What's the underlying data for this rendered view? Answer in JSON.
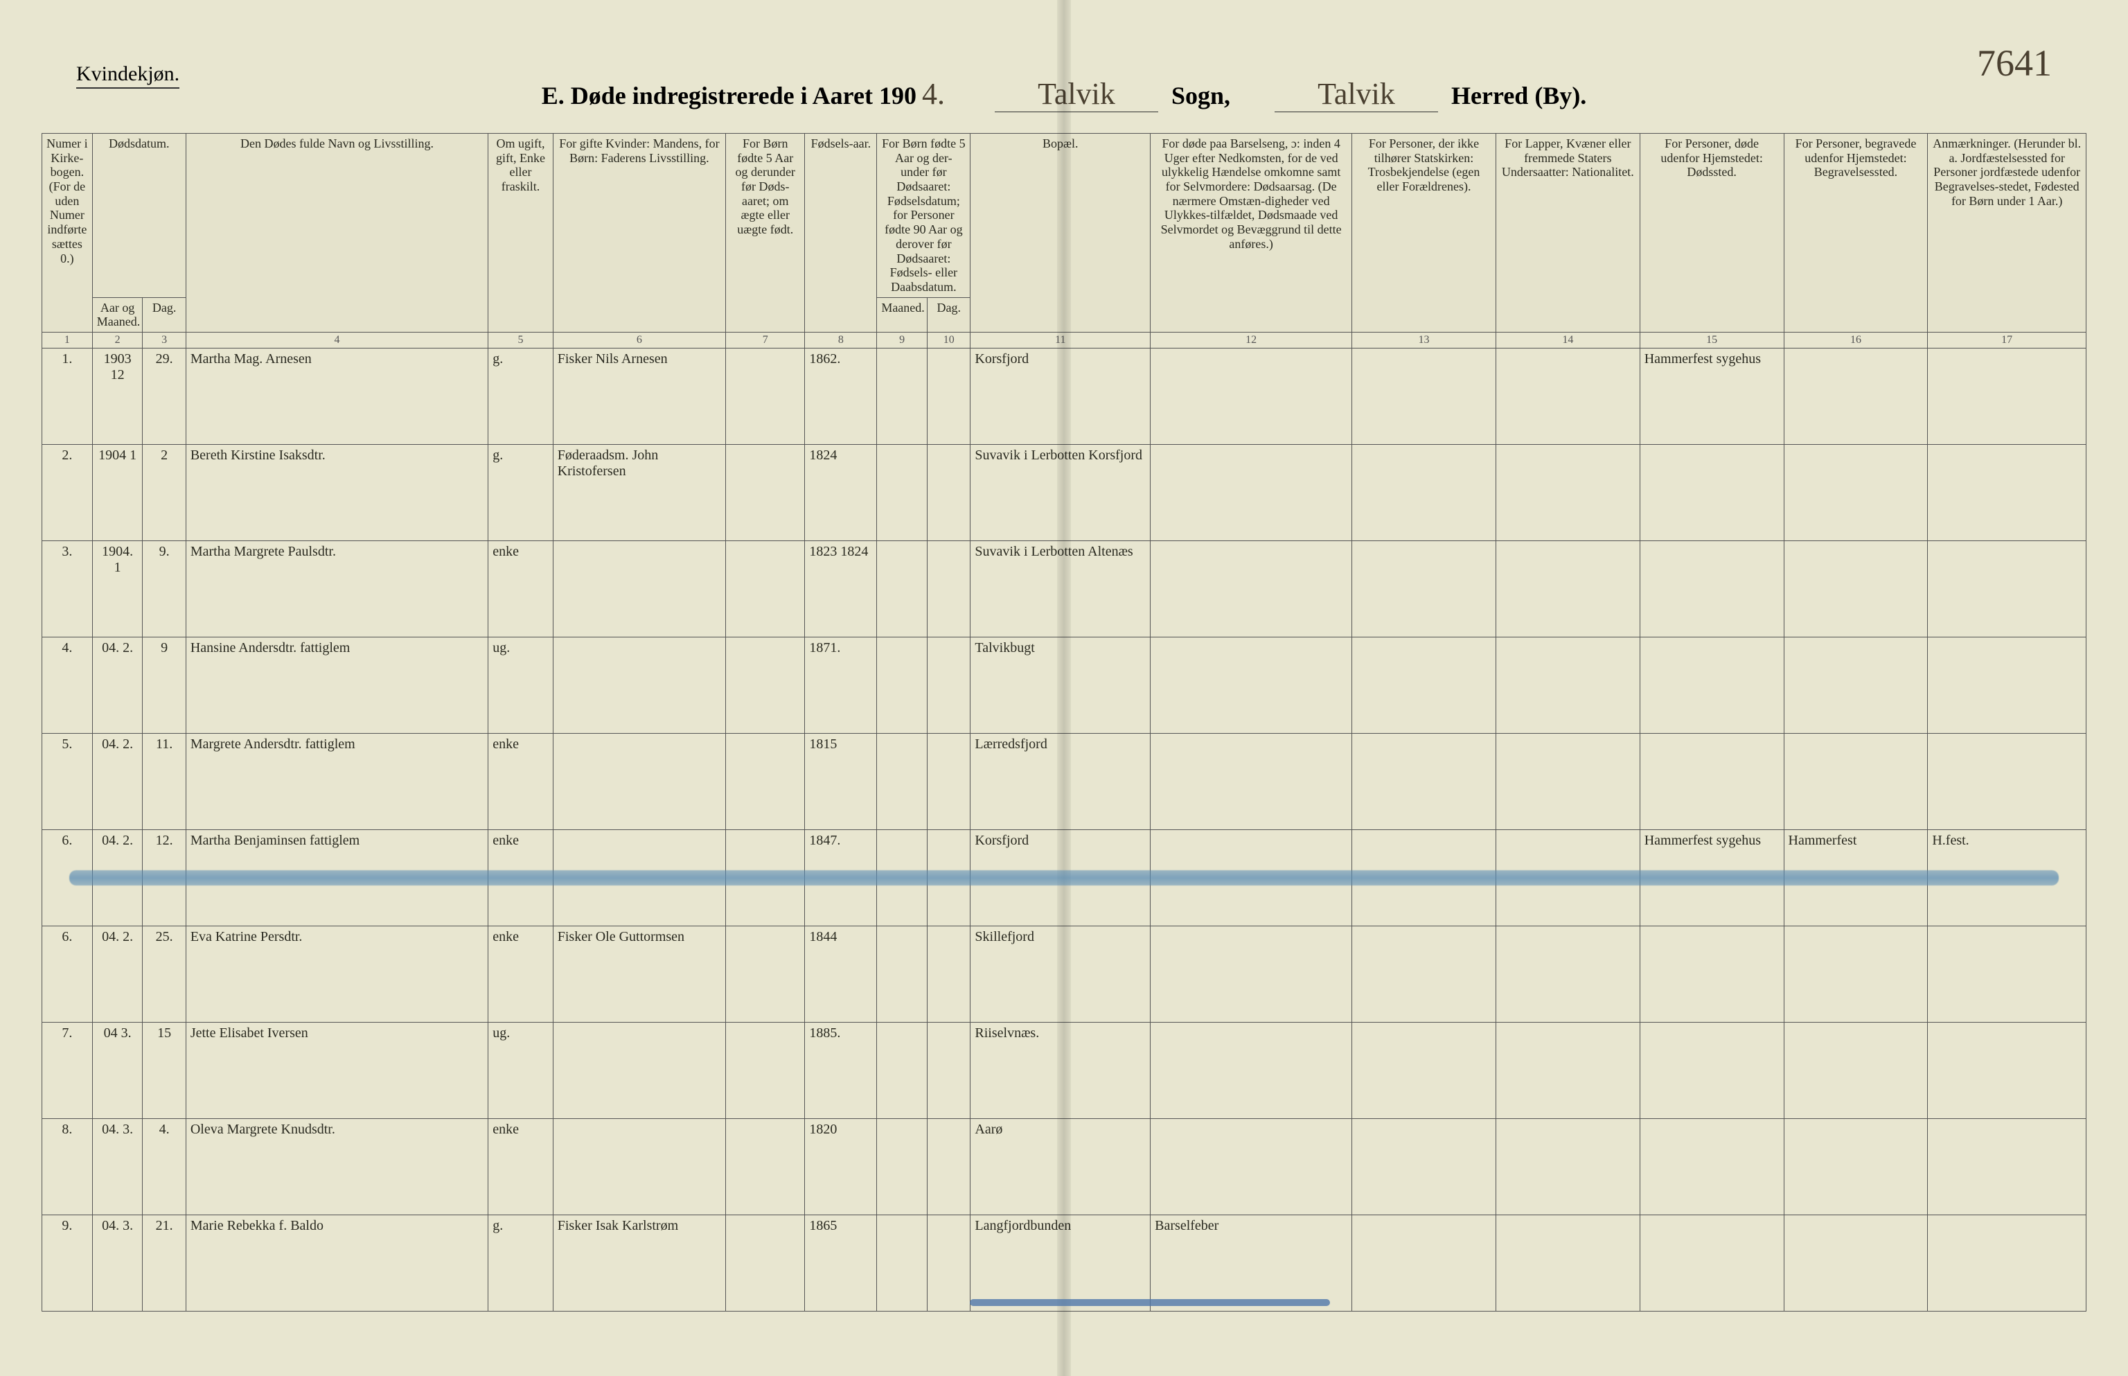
{
  "page_number_hand": "7641",
  "top_left_label": "Kvindekjøn.",
  "title": {
    "prefix": "E.  Døde indregistrerede i Aaret 190",
    "year_hand": "4.",
    "parish_hand": "Talvik",
    "parish_label": "Sogn,",
    "district_hand": "Talvik",
    "district_label": "Herred (By)."
  },
  "columns": {
    "c1": "Numer i Kirke-bogen. (For de uden Numer indførte sættes 0.)",
    "c2_top": "Dødsdatum.",
    "c2": "Aar og Maaned.",
    "c3": "Dag.",
    "c4": "Den Dødes fulde Navn og Livsstilling.",
    "c5": "Om ugift, gift, Enke eller fraskilt.",
    "c6": "For gifte Kvinder: Mandens, for Børn: Faderens Livsstilling.",
    "c7": "For Børn fødte 5 Aar og derunder før Døds-aaret; om ægte eller uægte født.",
    "c8": "Fødsels-aar.",
    "c9_top": "For Børn fødte 5 Aar og der-under før Dødsaaret: Fødselsdatum; for Personer fødte 90 Aar og derover før Dødsaaret: Fødsels- eller Daabsdatum.",
    "c9": "Maaned.",
    "c10": "Dag.",
    "c11": "Bopæl.",
    "c12": "For døde paa Barselseng, ɔ: inden 4 Uger efter Nedkomsten, for de ved ulykkelig Hændelse omkomne samt for Selvmordere: Dødsaarsag. (De nærmere Omstæn-digheder ved Ulykkes-tilfældet, Dødsmaade ved Selvmordet og Bevæggrund til dette anføres.)",
    "c13": "For Personer, der ikke tilhører Statskirken: Trosbekjendelse (egen eller Forældrenes).",
    "c14": "For Lapper, Kvæner eller fremmede Staters Undersaatter: Nationalitet.",
    "c15": "For Personer, døde udenfor Hjemstedet: Dødssted.",
    "c16": "For Personer, begravede udenfor Hjemstedet: Begravelsessted.",
    "c17": "Anmærkninger. (Herunder bl. a. Jordfæstelsessted for Personer jordfæstede udenfor Begravelses-stedet, Fødested for Børn under 1 Aar.)"
  },
  "colnums": [
    "1",
    "2",
    "3",
    "4",
    "5",
    "6",
    "7",
    "8",
    "9",
    "10",
    "11",
    "12",
    "13",
    "14",
    "15",
    "16",
    "17"
  ],
  "rows": [
    {
      "n": "1.",
      "year": "1903 12",
      "day": "29.",
      "name": "Martha Mag. Arnesen",
      "status": "g.",
      "spouse": "Fisker Nils Arnesen",
      "c7": "",
      "birth": "1862.",
      "c9": "",
      "c10": "",
      "place": "Korsfjord",
      "c12": "",
      "c13": "",
      "c14": "",
      "c15": "Hammerfest sygehus",
      "c16": "",
      "c17": ""
    },
    {
      "n": "2.",
      "year": "1904 1",
      "day": "2",
      "name": "Bereth Kirstine Isaksdtr.",
      "status": "g.",
      "spouse": "Føderaadsm. John Kristofersen",
      "c7": "",
      "birth": "1824",
      "c9": "",
      "c10": "",
      "place": "Suvavik i Lerbotten Korsfjord",
      "c12": "",
      "c13": "",
      "c14": "",
      "c15": "",
      "c16": "",
      "c17": ""
    },
    {
      "n": "3.",
      "year": "1904. 1",
      "day": "9.",
      "name": "Martha Margrete Paulsdtr.",
      "status": "enke",
      "spouse": "",
      "c7": "",
      "birth": "1823 1824",
      "c9": "",
      "c10": "",
      "place": "Suvavik i Lerbotten Altenæs",
      "c12": "",
      "c13": "",
      "c14": "",
      "c15": "",
      "c16": "",
      "c17": ""
    },
    {
      "n": "4.",
      "year": "04. 2.",
      "day": "9",
      "name": "Hansine Andersdtr. fattiglem",
      "status": "ug.",
      "spouse": "",
      "c7": "",
      "birth": "1871.",
      "c9": "",
      "c10": "",
      "place": "Talvikbugt",
      "c12": "",
      "c13": "",
      "c14": "",
      "c15": "",
      "c16": "",
      "c17": ""
    },
    {
      "n": "5.",
      "year": "04. 2.",
      "day": "11.",
      "name": "Margrete Andersdtr. fattiglem",
      "status": "enke",
      "spouse": "",
      "c7": "",
      "birth": "1815",
      "c9": "",
      "c10": "",
      "place": "Lærredsfjord",
      "c12": "",
      "c13": "",
      "c14": "",
      "c15": "",
      "c16": "",
      "c17": ""
    },
    {
      "n": "6.",
      "year": "04. 2.",
      "day": "12.",
      "name": "Martha Benjaminsen fattiglem",
      "status": "enke",
      "spouse": "",
      "c7": "",
      "birth": "1847.",
      "c9": "",
      "c10": "",
      "place": "Korsfjord",
      "c12": "",
      "c13": "",
      "c14": "",
      "c15": "Hammerfest sygehus",
      "c16": "Hammerfest",
      "c17": "H.fest.",
      "struck": true
    },
    {
      "n": "6.",
      "year": "04. 2.",
      "day": "25.",
      "name": "Eva Katrine Persdtr.",
      "status": "enke",
      "spouse": "Fisker Ole Guttormsen",
      "c7": "",
      "birth": "1844",
      "c9": "",
      "c10": "",
      "place": "Skillefjord",
      "c12": "",
      "c13": "",
      "c14": "",
      "c15": "",
      "c16": "",
      "c17": ""
    },
    {
      "n": "7.",
      "year": "04 3.",
      "day": "15",
      "name": "Jette Elisabet Iversen",
      "status": "ug.",
      "spouse": "",
      "c7": "",
      "birth": "1885.",
      "c9": "",
      "c10": "",
      "place": "Riiselvnæs.",
      "c12": "",
      "c13": "",
      "c14": "",
      "c15": "",
      "c16": "",
      "c17": ""
    },
    {
      "n": "8.",
      "year": "04. 3.",
      "day": "4.",
      "name": "Oleva Margrete Knudsdtr.",
      "status": "enke",
      "spouse": "",
      "c7": "",
      "birth": "1820",
      "c9": "",
      "c10": "",
      "place": "Aarø",
      "c12": "",
      "c13": "",
      "c14": "",
      "c15": "",
      "c16": "",
      "c17": ""
    },
    {
      "n": "9.",
      "year": "04. 3.",
      "day": "21.",
      "name": "Marie Rebekka f. Baldo",
      "status": "g.",
      "spouse": "Fisker Isak Karlstrøm",
      "c7": "",
      "birth": "1865",
      "c9": "",
      "c10": "",
      "place": "Langfjordbunden",
      "c12": "Barselfeber",
      "c13": "",
      "c14": "",
      "c15": "",
      "c16": "",
      "c17": "",
      "blue_underline": true
    }
  ],
  "colors": {
    "paper": "#e8e6d0",
    "ink": "#2a2a20",
    "blue_crayon": "#5a8cb4"
  }
}
